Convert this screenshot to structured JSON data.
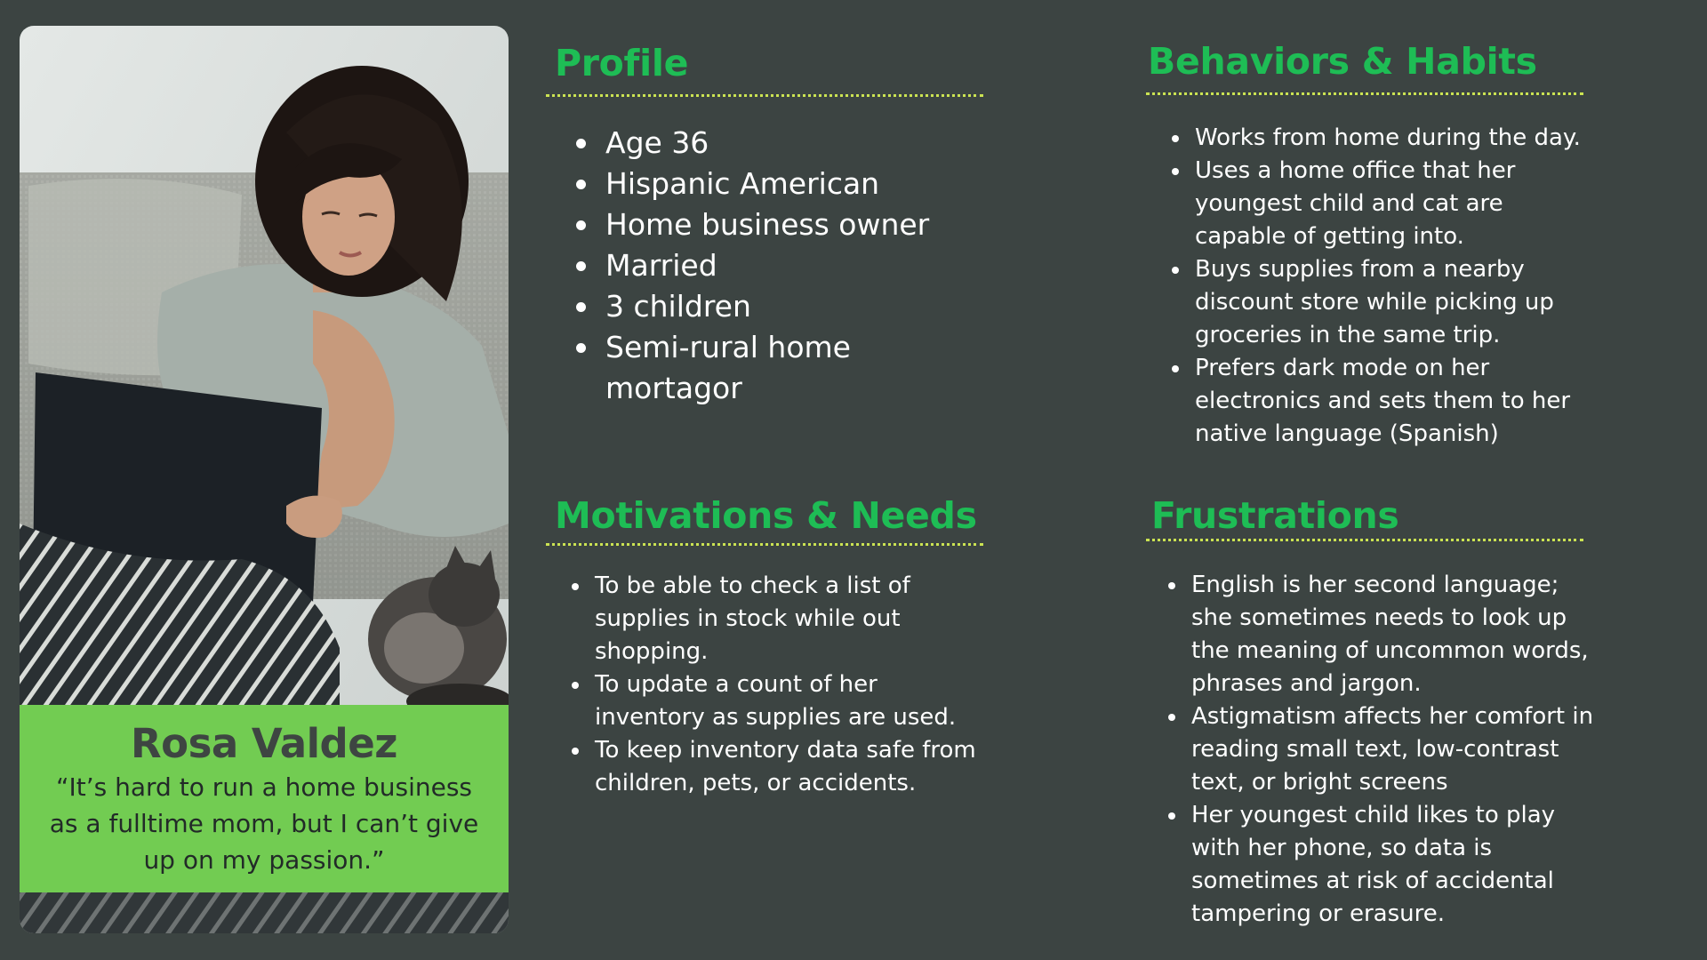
{
  "persona": {
    "name": "Rosa Valdez",
    "quote": "“It’s hard to run a home business as a fulltime mom, but I can’t give up on my passion.”"
  },
  "profile": {
    "title": "Profile",
    "items": [
      "Age 36",
      "Hispanic American",
      "Home business owner",
      "Married",
      "3 children",
      "Semi-rural home mortagor"
    ]
  },
  "behaviors": {
    "title": "Behaviors & Habits",
    "items": [
      "Works from home during the day.",
      "Uses a home office that her youngest child and cat are capable of getting into.",
      "Buys supplies from a nearby discount store while picking up groceries in the same trip.",
      "Prefers dark mode on her electronics and sets them to her native language (Spanish)"
    ]
  },
  "motivations": {
    "title": "Motivations & Needs",
    "items": [
      "To be able to check a list of supplies in stock while out shopping.",
      "To update a count of her inventory as supplies are used.",
      "To keep inventory data safe from children, pets, or accidents."
    ]
  },
  "frustrations": {
    "title": "Frustrations",
    "items": [
      "English is her second language; she sometimes needs to look up the meaning of uncommon words, phrases and jargon.",
      "Astigmatism affects her comfort in reading small text, low-contrast text, or bright screens",
      "Her youngest child likes to play with her phone, so data is sometimes at risk of accidental tampering or erasure."
    ]
  },
  "colors": {
    "background": "#3c4442",
    "heading": "#1ebd55",
    "divider": "#cbe352",
    "name_panel": "#72cc52",
    "text": "#ffffff"
  }
}
